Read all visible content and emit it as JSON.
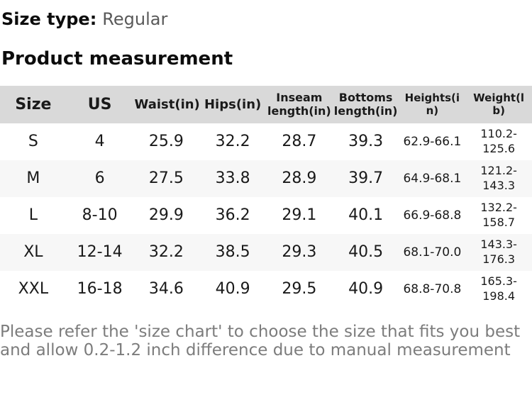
{
  "page": {
    "size_type_label": "Size type:",
    "size_type_value": "Regular",
    "section_title": "Product measurement",
    "footer_note": "Please refer the 'size chart' to choose the size that fits you best and allow 0.2-1.2 inch difference due to manual measurement"
  },
  "colors": {
    "header_row_bg": "#d9d9d9",
    "zebra_row_bg": "#f7f7f7",
    "primary_text": "#1a1a1a",
    "size_type_value_text": "#595959",
    "footer_text": "#7c7c7c"
  },
  "table": {
    "columns": [
      "Size",
      "US",
      "Waist(in)",
      "Hips(in)",
      "Inseam length(in)",
      "Bottoms length(in)",
      "Heights(in)",
      "Weight(lb)"
    ],
    "rows": [
      [
        "S",
        "4",
        "25.9",
        "32.2",
        "28.7",
        "39.3",
        "62.9-66.1",
        "110.2-125.6"
      ],
      [
        "M",
        "6",
        "27.5",
        "33.8",
        "28.9",
        "39.7",
        "64.9-68.1",
        "121.2-143.3"
      ],
      [
        "L",
        "8-10",
        "29.9",
        "36.2",
        "29.1",
        "40.1",
        "66.9-68.8",
        "132.2-158.7"
      ],
      [
        "XL",
        "12-14",
        "32.2",
        "38.5",
        "29.3",
        "40.5",
        "68.1-70.0",
        "143.3-176.3"
      ],
      [
        "XXL",
        "16-18",
        "34.6",
        "40.9",
        "29.5",
        "40.9",
        "68.8-70.8",
        "165.3-198.4"
      ]
    ]
  }
}
